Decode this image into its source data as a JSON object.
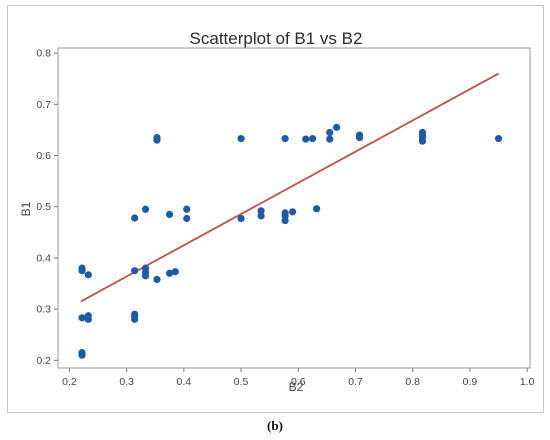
{
  "caption": "(b)",
  "chart_data": {
    "type": "scatter",
    "title": "Scatterplot of B1 vs B2",
    "xlabel": "B2",
    "ylabel": "B1",
    "xlim": [
      0.18,
      1.005
    ],
    "ylim": [
      0.185,
      0.81
    ],
    "xticks": [
      0.2,
      0.3,
      0.4,
      0.5,
      0.6,
      0.7,
      0.8,
      0.9,
      1.0
    ],
    "xtick_labels": [
      "0.2",
      "0.3",
      "0.4",
      "0.5",
      "0.6",
      "0.7",
      "0.8",
      "0.9",
      "1.0"
    ],
    "yticks": [
      0.2,
      0.3,
      0.4,
      0.5,
      0.6,
      0.7,
      0.8
    ],
    "ytick_labels": [
      "0.2",
      "0.3",
      "0.4",
      "0.5",
      "0.6",
      "0.7",
      "0.8"
    ],
    "grid": true,
    "point_color": "#1f5aa6",
    "fit_line_color": "#c0504d",
    "fit_line": {
      "x": [
        0.22,
        0.95
      ],
      "y": [
        0.315,
        0.76
      ]
    },
    "points": [
      {
        "x": 0.222,
        "y": 0.21
      },
      {
        "x": 0.222,
        "y": 0.215
      },
      {
        "x": 0.222,
        "y": 0.283
      },
      {
        "x": 0.222,
        "y": 0.375
      },
      {
        "x": 0.222,
        "y": 0.38
      },
      {
        "x": 0.233,
        "y": 0.28
      },
      {
        "x": 0.233,
        "y": 0.287
      },
      {
        "x": 0.233,
        "y": 0.367
      },
      {
        "x": 0.314,
        "y": 0.28
      },
      {
        "x": 0.314,
        "y": 0.285
      },
      {
        "x": 0.314,
        "y": 0.29
      },
      {
        "x": 0.314,
        "y": 0.375
      },
      {
        "x": 0.314,
        "y": 0.478
      },
      {
        "x": 0.333,
        "y": 0.365
      },
      {
        "x": 0.333,
        "y": 0.372
      },
      {
        "x": 0.333,
        "y": 0.38
      },
      {
        "x": 0.333,
        "y": 0.495
      },
      {
        "x": 0.353,
        "y": 0.358
      },
      {
        "x": 0.353,
        "y": 0.63
      },
      {
        "x": 0.353,
        "y": 0.635
      },
      {
        "x": 0.375,
        "y": 0.37
      },
      {
        "x": 0.375,
        "y": 0.485
      },
      {
        "x": 0.385,
        "y": 0.373
      },
      {
        "x": 0.405,
        "y": 0.477
      },
      {
        "x": 0.405,
        "y": 0.495
      },
      {
        "x": 0.5,
        "y": 0.477
      },
      {
        "x": 0.5,
        "y": 0.633
      },
      {
        "x": 0.535,
        "y": 0.482
      },
      {
        "x": 0.535,
        "y": 0.492
      },
      {
        "x": 0.577,
        "y": 0.473
      },
      {
        "x": 0.577,
        "y": 0.482
      },
      {
        "x": 0.577,
        "y": 0.488
      },
      {
        "x": 0.577,
        "y": 0.633
      },
      {
        "x": 0.59,
        "y": 0.49
      },
      {
        "x": 0.613,
        "y": 0.632
      },
      {
        "x": 0.625,
        "y": 0.633
      },
      {
        "x": 0.632,
        "y": 0.496
      },
      {
        "x": 0.655,
        "y": 0.632
      },
      {
        "x": 0.655,
        "y": 0.645
      },
      {
        "x": 0.667,
        "y": 0.655
      },
      {
        "x": 0.707,
        "y": 0.635
      },
      {
        "x": 0.707,
        "y": 0.64
      },
      {
        "x": 0.817,
        "y": 0.628
      },
      {
        "x": 0.817,
        "y": 0.635
      },
      {
        "x": 0.817,
        "y": 0.64
      },
      {
        "x": 0.817,
        "y": 0.645
      },
      {
        "x": 0.95,
        "y": 0.633
      }
    ]
  }
}
